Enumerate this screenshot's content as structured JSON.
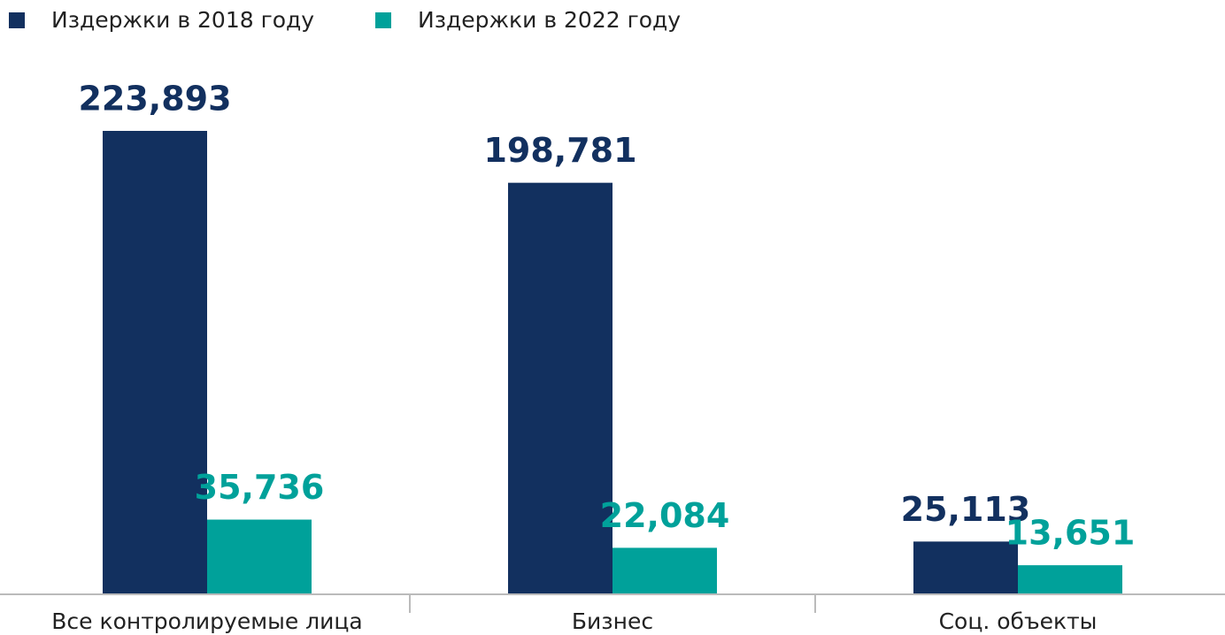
{
  "chart_data": {
    "type": "bar",
    "categories": [
      "Все контролируемые лица",
      "Бизнес",
      "Соц. объекты"
    ],
    "series": [
      {
        "name": "Издержки в 2018 году",
        "color": "#12305f",
        "values": [
          223893,
          198781,
          25113
        ],
        "value_labels": [
          "223,893",
          "198,781",
          "25,113"
        ]
      },
      {
        "name": "Издержки в 2022 году",
        "color": "#00a19a",
        "values": [
          35736,
          22084,
          13651
        ],
        "value_labels": [
          "35,736",
          "22,084",
          "13,651"
        ]
      }
    ],
    "legend": "top-left"
  }
}
